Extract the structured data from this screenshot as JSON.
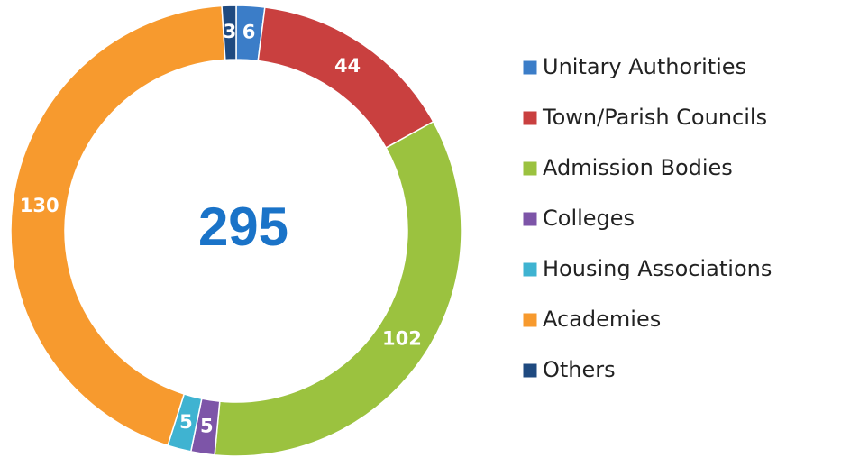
{
  "chart_data": {
    "type": "donut",
    "categories": [
      "Unitary Authorities",
      "Town/Parish Councils",
      "Admission Bodies",
      "Colleges",
      "Housing Associations",
      "Academies",
      "Others"
    ],
    "values": [
      6,
      44,
      102,
      5,
      5,
      130,
      3
    ],
    "colors": [
      "#3b7dc8",
      "#c9403f",
      "#9bc23f",
      "#7d55a8",
      "#3fb3d1",
      "#f79a2e",
      "#1f4a80"
    ],
    "total": 295,
    "total_color": "#1a73c8",
    "legend": "right"
  }
}
